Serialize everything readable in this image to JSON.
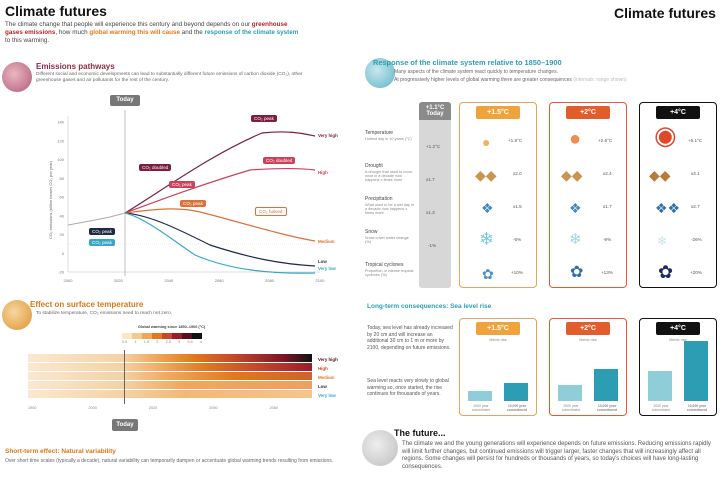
{
  "left": {
    "title": "Climate futures",
    "intro": {
      "p1": "The climate change that people will experience this century and beyond depends on our",
      "h1": "greenhouse gases emissions",
      "p2": ", how much",
      "h2": "global warming this will cause",
      "p3": "and the",
      "h3": "response of the climate system",
      "p4": "to this warming."
    },
    "emissions": {
      "title": "Emissions pathways",
      "text": "Different social and economic developments can lead to substantially different future emissions of carbon dioxide (CO₂), other greenhouse gases and air pollutants for the rest of the century.",
      "today": "Today",
      "ylabel": "CO₂ emissions (billion tonnes CO₂ per year)",
      "yticks": [
        "140",
        "120",
        "100",
        "80",
        "60",
        "40",
        "20",
        "0",
        "-20"
      ],
      "xticks": [
        "2000",
        "2020",
        "2040",
        "2060",
        "2080",
        "2100"
      ],
      "chips": [
        "CO₂ peak",
        "CO₂ doubled",
        "CO₂ peak",
        "CO₂ doubled",
        "CO₂ peak",
        "CO₂ halved",
        "CO₂ peak",
        "CO₂ peak"
      ],
      "scenarios": [
        "Very high",
        "High",
        "Medium",
        "Low",
        "Very low"
      ]
    },
    "surface": {
      "title": "Effect on surface temperature",
      "text": "To stabilize temperature, CO₂ emissions need to reach net zero.",
      "legend_title": "Global warming since 1850–1900 (°C)",
      "legend_ticks": [
        "0.5",
        "1",
        "1.5",
        "2",
        "2.5",
        "3",
        "3.5",
        "4"
      ],
      "scenarios": [
        "Very high",
        "High",
        "Medium",
        "Low",
        "Very low"
      ],
      "xticks": [
        "1950",
        "2000",
        "2020",
        "2050",
        "2060"
      ],
      "today": "Today"
    },
    "shortterm": {
      "title": "Short-term effect: Natural variability",
      "text": "Over short time scales (typically a decade), natural variability can temporarily dampen or accentuate global warming trends resulting from emissions."
    }
  },
  "right": {
    "title": "Climate futures",
    "response": {
      "title": "Response of the climate system relative to 1850–1900",
      "text1": "Many aspects of the climate system react quickly to temperature changes.",
      "text2": "At progressively higher levels of global warming there are greater consequences",
      "text2_small": "(intervals: range shown)",
      "today_label": "+1.1°C Today",
      "levels": [
        "+1.5°C",
        "+2°C",
        "+4°C"
      ],
      "rows": [
        {
          "name": "Temperature",
          "desc": "Hottest day in 10 years (°C)",
          "today": "+1.2°C",
          "values": [
            "+1.9°C",
            "+2.6°C",
            "+5.1°C"
          ]
        },
        {
          "name": "Drought",
          "desc": "A drought that used to occur once in a decade now happens x times more",
          "today": "x1.7",
          "values": [
            "x2.0",
            "x2.4",
            "x4.1"
          ]
        },
        {
          "name": "Precipitation",
          "desc": "What used to be a wet day in a decade now happens x times more",
          "today": "x1.3",
          "values": [
            "x1.5",
            "x1.7",
            "x2.7"
          ]
        },
        {
          "name": "Snow",
          "desc": "Snow cover water change (%)",
          "today": "-1%",
          "values": [
            "-5%",
            "-9%",
            "-26%"
          ]
        },
        {
          "name": "Tropical cyclones",
          "desc": "Proportion of intense tropical cyclones (%)",
          "today": "",
          "values": [
            "+10%",
            "+13%",
            "+20%"
          ]
        }
      ]
    },
    "sealevel": {
      "title": "Long-term consequences: Sea level rise",
      "text1": "Today, sea level has already increased by 20 cm and will increase an additional 30 cm to 1 m or more by 2100, depending on future emissions.",
      "text2": "Sea level reacts very slowly to global warming so, once started, the rise continues for thousands of years.",
      "levels": [
        "+1.5°C",
        "+2°C",
        "+4°C"
      ],
      "card_label": "Metric rise",
      "bar_labels": [
        "2000 year commitment",
        "10,000 year commitment"
      ]
    },
    "future": {
      "title": "The future...",
      "text": "The climate we and the young generations will experience depends on future emissions. Reducing emissions rapidly will limit further changes, but continued emissions will trigger larger, faster changes that will increasingly affect all regions. Some changes will persist for hundreds or thousands of years, so today's choices will have long-lasting consequences."
    }
  },
  "colors": {
    "orange": "#e07a1f",
    "red": "#b5252d",
    "teal": "#2d9db3",
    "dark": "#222222"
  }
}
